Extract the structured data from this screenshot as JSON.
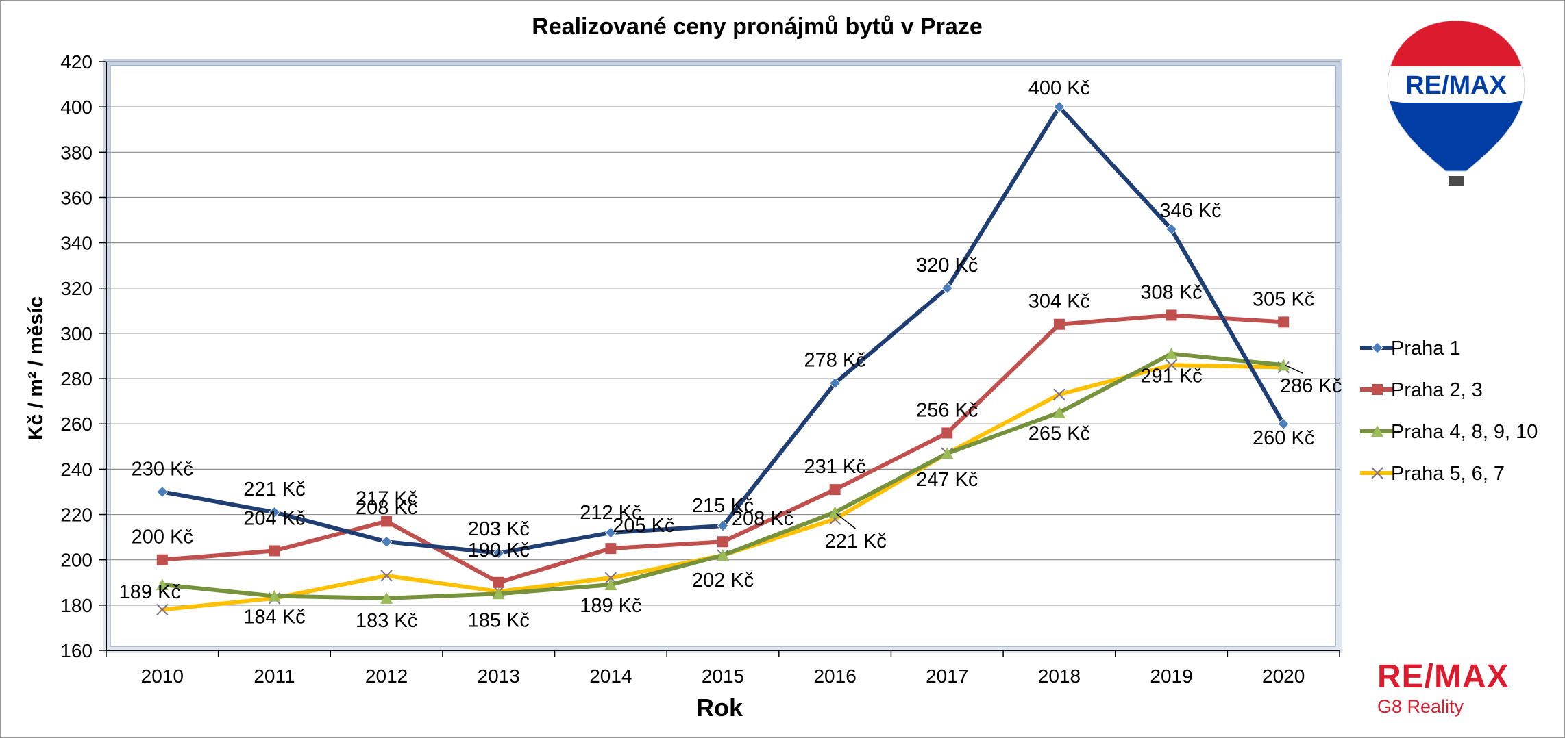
{
  "chart_data": {
    "type": "line",
    "title": "Realizované ceny pronájmů bytů v Praze",
    "xlabel": "Rok",
    "ylabel": "Kč / m² / měsíc",
    "categories": [
      "2010",
      "2011",
      "2012",
      "2013",
      "2014",
      "2015",
      "2016",
      "2017",
      "2018",
      "2019",
      "2020"
    ],
    "ylim": [
      160,
      420
    ],
    "yticks": [
      160,
      180,
      200,
      220,
      240,
      260,
      280,
      300,
      320,
      340,
      360,
      380,
      400,
      420
    ],
    "grid": true,
    "legend_position": "right",
    "value_suffix": " Kč",
    "series": [
      {
        "name": "Praha 1",
        "color": "#1f3e74",
        "marker": "diamond",
        "marker_color": "#4a7ebb",
        "values": [
          230,
          221,
          208,
          203,
          212,
          215,
          278,
          320,
          400,
          346,
          260
        ],
        "labels": [
          "230 Kč",
          "221 Kč",
          "208 Kč",
          "203 Kč",
          "212 Kč",
          "215 Kč",
          "278 Kč",
          "320 Kč",
          "400 Kč",
          "346 Kč",
          "260 Kč"
        ]
      },
      {
        "name": "Praha 2, 3",
        "color": "#c0504d",
        "marker": "square",
        "marker_color": "#c0504d",
        "values": [
          200,
          204,
          217,
          190,
          205,
          208,
          231,
          256,
          304,
          308,
          305
        ],
        "labels": [
          "200 Kč",
          "204 Kč",
          "217 Kč",
          "190 Kč",
          "205 Kč",
          "208 Kč",
          "231 Kč",
          "256 Kč",
          "304 Kč",
          "308 Kč",
          "305 Kč"
        ]
      },
      {
        "name": "Praha 4, 8, 9, 10",
        "color": "#76923c",
        "marker": "triangle",
        "marker_color": "#9bbb59",
        "values": [
          189,
          184,
          183,
          185,
          189,
          202,
          221,
          247,
          265,
          291,
          286
        ],
        "labels": [
          "189 Kč",
          "184 Kč",
          "183 Kč",
          "185 Kč",
          "189 Kč",
          "202 Kč",
          "221 Kč",
          "247 Kč",
          "265 Kč",
          "291 Kč",
          "286 Kč"
        ]
      },
      {
        "name": "Praha 5, 6, 7",
        "color": "#ffc000",
        "marker": "x",
        "marker_color": "#7f6f8f",
        "values": [
          178,
          183,
          193,
          186,
          192,
          202,
          218,
          247,
          273,
          286,
          285
        ],
        "labels": []
      }
    ]
  },
  "logos": {
    "balloon_text": "RE/MAX",
    "brand_text": "RE/MAX",
    "brand_sub": "G8 Reality",
    "brand_color": "#dc1c2e",
    "balloon_blue": "#003da5"
  }
}
